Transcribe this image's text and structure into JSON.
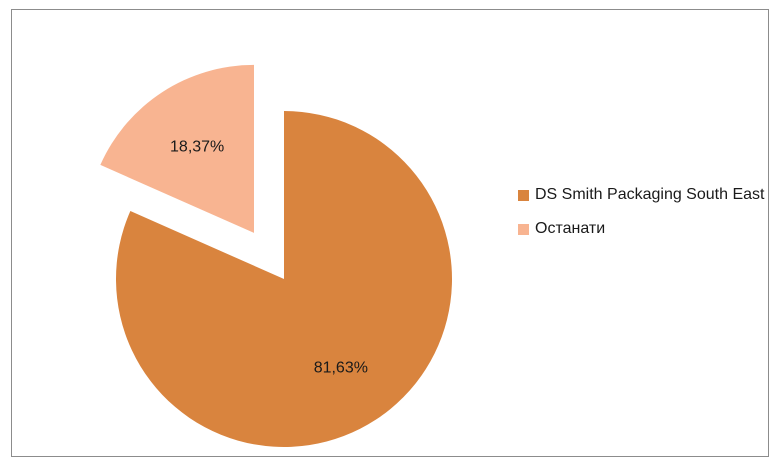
{
  "chart_data": {
    "type": "pie",
    "slices": [
      {
        "name": "DS Smith Packaging South East",
        "value": 81.63,
        "label": "81,63%",
        "color": "#D9843E",
        "exploded": false
      },
      {
        "name": "Останати",
        "value": 18.37,
        "label": "18,37%",
        "color": "#F8B491",
        "exploded": true
      }
    ],
    "legend_position": "right"
  }
}
